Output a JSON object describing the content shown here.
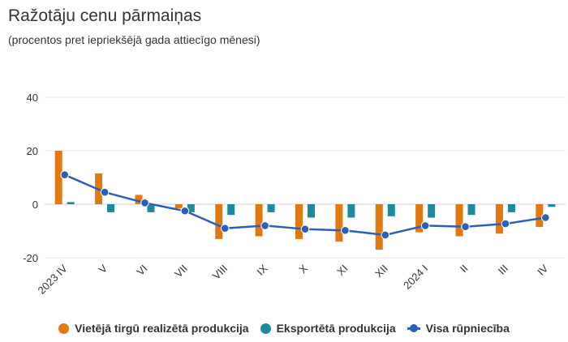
{
  "chart_data": {
    "type": "bar",
    "title": "Ražotāju cenu pārmaiņas",
    "subtitle": "(procentos pret iepriekšējā gada attiecīgo mēnesi)",
    "categories": [
      "2023 IV",
      "V",
      "VI",
      "VII",
      "VIII",
      "IX",
      "X",
      "XI",
      "XII",
      "2024 I",
      "II",
      "III",
      "IV"
    ],
    "ylim": [
      -20,
      40
    ],
    "yticks": [
      40,
      20,
      0,
      -20
    ],
    "grid": true,
    "legend_position": "bottom",
    "series": [
      {
        "name": "Vietējā tirgū realizētā produkcija",
        "type": "bar",
        "color": "#E07A10",
        "values": [
          20.0,
          11.5,
          3.5,
          -1.5,
          -13.0,
          -12.0,
          -13.0,
          -14.0,
          -17.0,
          -10.5,
          -12.0,
          -11.0,
          -8.5
        ]
      },
      {
        "name": "Eksportētā produkcija",
        "type": "bar",
        "color": "#1B8A9C",
        "values": [
          0.8,
          -3.0,
          -3.0,
          -3.0,
          -4.0,
          -3.0,
          -5.0,
          -5.0,
          -4.5,
          -5.0,
          -4.0,
          -3.0,
          -1.0
        ]
      },
      {
        "name": "Visa rūpniecība",
        "type": "line",
        "color": "#2D5FB8",
        "values": [
          11.0,
          4.5,
          0.5,
          -2.5,
          -9.0,
          -8.0,
          -9.3,
          -9.8,
          -11.5,
          -8.0,
          -8.4,
          -7.3,
          -5.0
        ]
      }
    ]
  },
  "legend": {
    "items": [
      {
        "label": "Vietējā tirgū realizētā produkcija",
        "color": "#E07A10"
      },
      {
        "label": "Eksportētā produkcija",
        "color": "#1B8A9C"
      },
      {
        "label": "Visa rūpniecība",
        "color": "#2D5FB8"
      }
    ]
  }
}
